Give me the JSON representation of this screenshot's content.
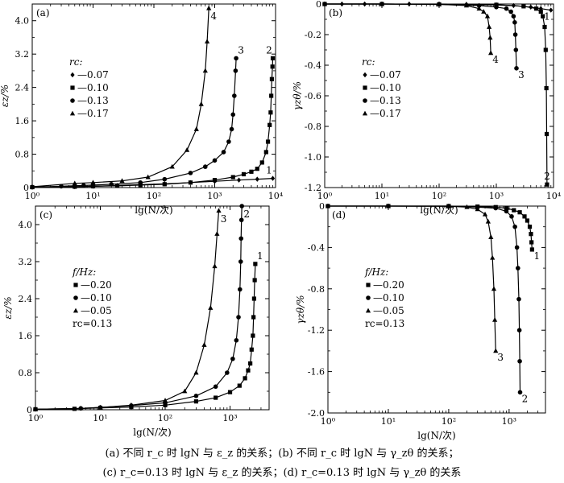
{
  "caption": {
    "line1": "(a) 不同 r_c 时 lgN 与 ε_z 的关系；(b) 不同 r_c 时 lgN 与 γ_zθ 的关系；",
    "line2": "(c) r_c=0.13 时 lgN 与 ε_z 的关系；(d) r_c=0.13 时 lgN 与 γ_zθ 的关系"
  },
  "chart_data": [
    {
      "id": "a",
      "panel_label": "(a)",
      "type": "line",
      "x_scale": "log",
      "xlim": [
        1,
        10000
      ],
      "ylim": [
        0,
        4.4
      ],
      "xticks": [
        1,
        10,
        100,
        1000,
        10000
      ],
      "xtick_labels": [
        "10⁰",
        "10¹",
        "10²",
        "10³",
        "10⁴"
      ],
      "yticks": [
        0,
        0.8,
        1.6,
        2.4,
        3.2,
        4.0
      ],
      "ytick_labels": [
        "0",
        "0.8",
        "1.6",
        "2.4",
        "3.2",
        "4.0"
      ],
      "xlabel": "lg(N/次)",
      "ylabel": "εz/%",
      "legend_title": "rc:",
      "legend_position": "left-middle",
      "series": [
        {
          "name": "—0.07",
          "marker": "diamond",
          "curve_label": "1",
          "x": [
            1,
            5,
            10,
            25,
            60,
            150,
            400,
            1000,
            2500,
            5000,
            9000
          ],
          "y": [
            0.01,
            0.02,
            0.03,
            0.05,
            0.07,
            0.09,
            0.12,
            0.15,
            0.18,
            0.2,
            0.22
          ]
        },
        {
          "name": "—0.10",
          "marker": "square",
          "curve_label": "2",
          "x": [
            1,
            5,
            10,
            25,
            60,
            150,
            400,
            1000,
            2000,
            3000,
            4000,
            5000,
            6000,
            7000,
            7500,
            8000,
            8300,
            8500,
            8700,
            8900,
            9000
          ],
          "y": [
            0.01,
            0.02,
            0.03,
            0.04,
            0.06,
            0.08,
            0.12,
            0.18,
            0.25,
            0.32,
            0.38,
            0.45,
            0.6,
            0.85,
            1.1,
            1.5,
            1.8,
            2.2,
            2.6,
            2.9,
            3.1
          ]
        },
        {
          "name": "—0.13",
          "marker": "circle",
          "curve_label": "3",
          "x": [
            1,
            3,
            7,
            20,
            60,
            150,
            400,
            700,
            1000,
            1400,
            1700,
            1900,
            2000,
            2100,
            2200,
            2250
          ],
          "y": [
            0.01,
            0.03,
            0.05,
            0.08,
            0.12,
            0.2,
            0.35,
            0.5,
            0.65,
            0.85,
            1.1,
            1.4,
            1.75,
            2.2,
            2.8,
            3.1
          ]
        },
        {
          "name": "—0.17",
          "marker": "triangle",
          "curve_label": "4",
          "x": [
            1,
            5,
            10,
            30,
            80,
            200,
            350,
            500,
            600,
            700,
            750,
            800
          ],
          "y": [
            0.02,
            0.1,
            0.12,
            0.16,
            0.25,
            0.5,
            0.9,
            1.4,
            2.0,
            2.8,
            3.5,
            4.3
          ]
        }
      ]
    },
    {
      "id": "b",
      "panel_label": "(b)",
      "type": "line",
      "x_scale": "log",
      "xlim": [
        1,
        10000
      ],
      "ylim": [
        -1.2,
        0
      ],
      "xticks": [
        1,
        10,
        100,
        1000,
        10000
      ],
      "xtick_labels": [
        "10⁰",
        "10¹",
        "10²",
        "10³",
        "10⁴"
      ],
      "yticks": [
        0,
        -0.2,
        -0.4,
        -0.6,
        -0.8,
        -1.0,
        -1.2
      ],
      "ytick_labels": [
        "0",
        "-0.2",
        "-0.4",
        "-0.6",
        "-0.8",
        "-1.0",
        "-1.2"
      ],
      "xlabel": "lg(N/次)",
      "ylabel": "γzθ/%",
      "legend_title": "rc:",
      "legend_position": "left-middle",
      "series": [
        {
          "name": "—0.07",
          "marker": "diamond",
          "curve_label": "1",
          "x": [
            1,
            2,
            5,
            10,
            30,
            100,
            300,
            1000,
            2000,
            4000,
            6000,
            9000
          ],
          "y": [
            0,
            0,
            0,
            0,
            0,
            0,
            -0.002,
            -0.005,
            -0.01,
            -0.02,
            -0.03,
            -0.04
          ]
        },
        {
          "name": "—0.10",
          "marker": "square",
          "curve_label": "2",
          "x": [
            1,
            10,
            100,
            1000,
            3000,
            5000,
            6000,
            6500,
            7000,
            7300,
            7500,
            7600,
            7700
          ],
          "y": [
            0,
            0,
            -0.002,
            -0.005,
            -0.015,
            -0.03,
            -0.05,
            -0.08,
            -0.15,
            -0.3,
            -0.55,
            -0.85,
            -1.18
          ]
        },
        {
          "name": "—0.13",
          "marker": "circle",
          "curve_label": "3",
          "x": [
            1,
            10,
            100,
            500,
            1000,
            1500,
            1800,
            2000,
            2100,
            2150,
            2200,
            2250
          ],
          "y": [
            0,
            0,
            -0.002,
            -0.01,
            -0.02,
            -0.03,
            -0.05,
            -0.08,
            -0.12,
            -0.2,
            -0.3,
            -0.42
          ]
        },
        {
          "name": "—0.17",
          "marker": "triangle",
          "curve_label": "4",
          "x": [
            1,
            10,
            100,
            300,
            500,
            600,
            700,
            750,
            780,
            800
          ],
          "y": [
            0,
            0,
            -0.002,
            -0.01,
            -0.03,
            -0.05,
            -0.08,
            -0.15,
            -0.22,
            -0.32
          ]
        }
      ]
    },
    {
      "id": "c",
      "panel_label": "(c)",
      "type": "line",
      "x_scale": "log",
      "xlim": [
        1,
        4000
      ],
      "ylim": [
        0,
        4.4
      ],
      "xticks": [
        1,
        10,
        100,
        1000
      ],
      "xtick_labels": [
        "10⁰",
        "10¹",
        "10²",
        "10³"
      ],
      "yticks": [
        0,
        0.8,
        1.6,
        2.4,
        3.2,
        4.0
      ],
      "ytick_labels": [
        "0",
        "0.8",
        "1.6",
        "2.4",
        "3.2",
        "4.0"
      ],
      "xlabel": "lg(N/次)",
      "ylabel": "εz/%",
      "legend_title": "f/Hz:",
      "legend_note": "rc=0.13",
      "legend_position": "left-middle",
      "series": [
        {
          "name": "—0.20",
          "marker": "square",
          "curve_label": "1",
          "x": [
            1,
            4,
            10,
            30,
            100,
            300,
            600,
            1000,
            1400,
            1700,
            1900,
            2050,
            2150,
            2250,
            2300,
            2350,
            2400,
            2450
          ],
          "y": [
            0.01,
            0.02,
            0.04,
            0.06,
            0.1,
            0.18,
            0.26,
            0.38,
            0.52,
            0.68,
            0.85,
            1.0,
            1.3,
            1.6,
            2.0,
            2.4,
            2.8,
            3.15
          ]
        },
        {
          "name": "—0.10",
          "marker": "circle",
          "curve_label": "2",
          "x": [
            1,
            5,
            10,
            30,
            100,
            300,
            600,
            900,
            1100,
            1250,
            1350,
            1420,
            1460,
            1480,
            1500,
            1520
          ],
          "y": [
            0.01,
            0.03,
            0.05,
            0.09,
            0.15,
            0.3,
            0.5,
            0.8,
            1.1,
            1.5,
            2.0,
            2.6,
            3.2,
            3.7,
            4.1,
            4.4
          ]
        },
        {
          "name": "—0.05",
          "marker": "triangle",
          "curve_label": "3",
          "x": [
            1,
            5,
            10,
            30,
            100,
            200,
            300,
            400,
            500,
            580,
            630,
            670
          ],
          "y": [
            0.01,
            0.03,
            0.05,
            0.1,
            0.2,
            0.4,
            0.8,
            1.4,
            2.2,
            3.1,
            3.8,
            4.3
          ]
        }
      ]
    },
    {
      "id": "d",
      "panel_label": "(d)",
      "type": "line",
      "x_scale": "log",
      "xlim": [
        1,
        4000
      ],
      "ylim": [
        -2.0,
        0
      ],
      "xticks": [
        1,
        10,
        100,
        1000
      ],
      "xtick_labels": [
        "10⁰",
        "10¹",
        "10²",
        "10³"
      ],
      "yticks": [
        0,
        -0.4,
        -0.8,
        -1.2,
        -1.6,
        -2.0
      ],
      "ytick_labels": [
        "0",
        "-0.4",
        "-0.8",
        "-1.2",
        "-1.6",
        "-2.0"
      ],
      "xlabel": "lg(N/次)",
      "ylabel": "γzθ/%",
      "legend_title": "f/Hz:",
      "legend_note": "rc=0.13",
      "legend_position": "left-middle",
      "series": [
        {
          "name": "—0.20",
          "marker": "square",
          "curve_label": "1",
          "x": [
            1,
            10,
            100,
            300,
            600,
            900,
            1200,
            1500,
            1800,
            2000,
            2200,
            2300,
            2350,
            2400
          ],
          "y": [
            0,
            0,
            0,
            -0.005,
            -0.01,
            -0.02,
            -0.04,
            -0.06,
            -0.1,
            -0.14,
            -0.2,
            -0.27,
            -0.35,
            -0.42
          ]
        },
        {
          "name": "—0.10",
          "marker": "circle",
          "curve_label": "2",
          "x": [
            1,
            10,
            100,
            300,
            600,
            900,
            1100,
            1250,
            1350,
            1400,
            1450,
            1480,
            1500,
            1520
          ],
          "y": [
            0,
            0,
            0,
            -0.01,
            -0.02,
            -0.05,
            -0.1,
            -0.2,
            -0.4,
            -0.6,
            -0.9,
            -1.2,
            -1.5,
            -1.8
          ]
        },
        {
          "name": "—0.05",
          "marker": "triangle",
          "curve_label": "3",
          "x": [
            1,
            10,
            100,
            200,
            300,
            400,
            450,
            500,
            530,
            560,
            580,
            600
          ],
          "y": [
            0,
            0,
            -0.002,
            -0.01,
            -0.03,
            -0.08,
            -0.15,
            -0.3,
            -0.5,
            -0.8,
            -1.1,
            -1.4
          ]
        }
      ]
    }
  ]
}
